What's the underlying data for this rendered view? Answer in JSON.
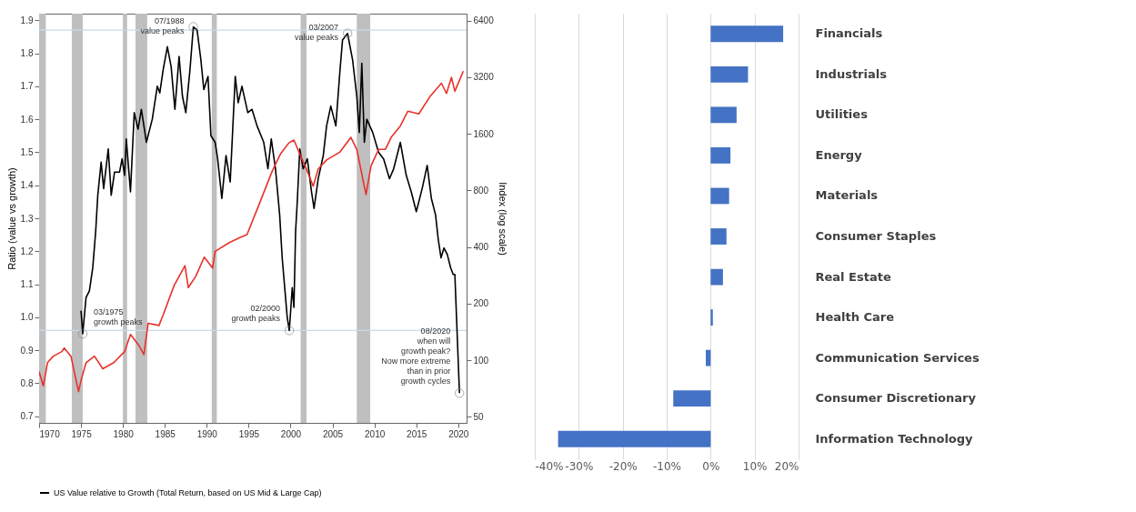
{
  "chart_data": [
    {
      "type": "line",
      "ylabel": "Ratio (value vs growth)",
      "y2label": "Index (log scale)",
      "legend": "bottom",
      "log": "y2",
      "xlim": [
        1970,
        2021
      ],
      "xticks": [
        1970,
        1975,
        1980,
        1985,
        1990,
        1995,
        2000,
        2005,
        2010,
        2015,
        2020
      ],
      "ylim": [
        0.68,
        1.92
      ],
      "yticks": [
        0.7,
        0.8,
        0.9,
        {
          "value": 1,
          "label": "1.0"
        },
        1.1,
        1.2,
        1.3,
        1.4,
        1.5,
        1.6,
        1.7,
        1.8,
        1.9
      ],
      "y2lim": [
        46.4,
        6960
      ],
      "y2ticks": [
        50,
        100,
        200,
        400,
        800,
        1600,
        3200,
        6400
      ],
      "series": [
        {
          "color": "#e8312a",
          "axis": "y2",
          "x": [
            1970,
            1970.5,
            1971,
            1971.7,
            1972.7,
            1973,
            1973.8,
            1974.7,
            1975,
            1975.6,
            1976.6,
            1977.6,
            1978.9,
            1980.2,
            1980.9,
            1981.9,
            1982.5,
            1983,
            1984.3,
            1984.8,
            1986.1,
            1987.4,
            1987.8,
            1988.7,
            1989.7,
            1990.7,
            1991,
            1992.7,
            1994,
            1994.8,
            1996.2,
            1997.8,
            1998.8,
            1999.8,
            2000.4,
            2001.1,
            2002,
            2002.7,
            2003.3,
            2004.3,
            2005.9,
            2007.2,
            2007.9,
            2009,
            2009.6,
            2010.5,
            2011.3,
            2012,
            2013.1,
            2014,
            2015.3,
            2016.6,
            2018,
            2018.6,
            2019.2,
            2019.6,
            2020.6
          ],
          "values": [
            87,
            73,
            97,
            105,
            111,
            116,
            105,
            68,
            78,
            97,
            105,
            90,
            97,
            111,
            137,
            120,
            107,
            157,
            153,
            174,
            249,
            318,
            243,
            280,
            353,
            309,
            379,
            422,
            450,
            465,
            665,
            1010,
            1250,
            1430,
            1480,
            1250,
            1010,
            842,
            1040,
            1160,
            1280,
            1530,
            1320,
            760,
            1080,
            1320,
            1320,
            1530,
            1760,
            2110,
            2040,
            2510,
            2970,
            2620,
            3190,
            2690,
            3440
          ]
        },
        {
          "name": "US Value relative to Growth (Total Return, based on US Mid & Large Cap)",
          "color": "#000000",
          "x": [
            1975,
            1975.2,
            1975.6,
            1976,
            1976.4,
            1976.75,
            1977,
            1977.4,
            1977.7,
            1978.25,
            1978.6,
            1979,
            1979.6,
            1979.9,
            1980.2,
            1980.4,
            1980.9,
            1981.35,
            1981.8,
            1982.2,
            1982.8,
            1983.5,
            1984.1,
            1984.4,
            1984.8,
            1985.3,
            1985.75,
            1986.2,
            1986.7,
            1987.1,
            1987.5,
            1988,
            1988.4,
            1988.85,
            1989.3,
            1989.65,
            1990.15,
            1990.5,
            1991,
            1991.3,
            1991.8,
            1992.3,
            1992.8,
            1993.4,
            1993.75,
            1994.2,
            1994.9,
            1995.4,
            1996,
            1996.8,
            1997.3,
            1997.7,
            1998.2,
            1998.7,
            1999,
            1999.6,
            1999.85,
            2000.2,
            2000.4,
            2000.6,
            2000.8,
            2001.1,
            2001.5,
            2002,
            2002.5,
            2002.8,
            2003.3,
            2003.9,
            2004.3,
            2004.8,
            2005.4,
            2005.9,
            2006.2,
            2006.8,
            2007.4,
            2007.9,
            2008.2,
            2008.5,
            2008.8,
            2009.1,
            2009.8,
            2010.5,
            2011.1,
            2011.8,
            2012.3,
            2013.1,
            2013.8,
            2014.4,
            2015,
            2015.7,
            2016.3,
            2016.8,
            2017.3,
            2017.6,
            2017.95,
            2018.3,
            2018.7,
            2019.1,
            2019.4,
            2019.6,
            2020.15
          ],
          "values": [
            1.02,
            0.95,
            1.06,
            1.08,
            1.15,
            1.26,
            1.37,
            1.47,
            1.39,
            1.51,
            1.37,
            1.44,
            1.44,
            1.48,
            1.43,
            1.54,
            1.38,
            1.62,
            1.57,
            1.63,
            1.53,
            1.6,
            1.7,
            1.68,
            1.75,
            1.82,
            1.76,
            1.63,
            1.79,
            1.67,
            1.62,
            1.75,
            1.88,
            1.87,
            1.78,
            1.69,
            1.73,
            1.55,
            1.53,
            1.48,
            1.36,
            1.49,
            1.41,
            1.73,
            1.65,
            1.7,
            1.62,
            1.63,
            1.58,
            1.53,
            1.45,
            1.54,
            1.45,
            1.31,
            1.18,
            1.0,
            0.96,
            1.09,
            1.03,
            1.26,
            1.35,
            1.51,
            1.45,
            1.48,
            1.38,
            1.33,
            1.42,
            1.49,
            1.58,
            1.64,
            1.58,
            1.75,
            1.84,
            1.86,
            1.78,
            1.67,
            1.56,
            1.77,
            1.53,
            1.6,
            1.56,
            1.5,
            1.48,
            1.42,
            1.45,
            1.53,
            1.43,
            1.38,
            1.32,
            1.39,
            1.46,
            1.36,
            1.31,
            1.24,
            1.18,
            1.21,
            1.19,
            1.15,
            1.13,
            1.13,
            0.77
          ]
        }
      ],
      "bands": [
        {
          "axis": "x",
          "from": 1969.9,
          "to": 1970.8,
          "color": "#bfbfbf"
        },
        {
          "axis": "x",
          "from": 1973.9,
          "to": 1975.2,
          "color": "#bfbfbf"
        },
        {
          "axis": "x",
          "from": 1980.0,
          "to": 1980.5,
          "color": "#bfbfbf"
        },
        {
          "axis": "x",
          "from": 1981.5,
          "to": 1982.9,
          "color": "#bfbfbf"
        },
        {
          "axis": "x",
          "from": 1990.6,
          "to": 1991.2,
          "color": "#bfbfbf"
        },
        {
          "axis": "x",
          "from": 2001.2,
          "to": 2001.9,
          "color": "#bfbfbf"
        },
        {
          "axis": "x",
          "from": 2007.9,
          "to": 2009.5,
          "color": "#bfbfbf"
        }
      ],
      "ref_lines": [
        {
          "axis": "y",
          "value": 1.87,
          "color": "#c9dbe8"
        },
        {
          "axis": "y",
          "value": 0.96,
          "color": "#c9dbe8"
        }
      ],
      "annotations": [
        {
          "text": "07/1988\nvalue peaks",
          "x": 1988.4,
          "y": 1.88
        },
        {
          "text": "03/2007\nvalue peaks",
          "x": 2006.8,
          "y": 1.86
        },
        {
          "text": "03/1975\ngrowth peaks",
          "x": 1975.2,
          "y": 0.95
        },
        {
          "text": "02/2000\ngrowth peaks",
          "x": 1999.85,
          "y": 0.96
        },
        {
          "text": "08/2020\nwhen will\ngrowth peak?\nNow more extreme\nthan in prior\ngrowth cycles",
          "x": 2020.15,
          "y": 0.77
        }
      ]
    },
    {
      "type": "bar",
      "orientation": "horizontal",
      "grid": "x",
      "color": "#4472c4",
      "categories": [
        "Financials",
        "Industrials",
        "Utilities",
        "Energy",
        "Materials",
        "Consumer Staples",
        "Real Estate",
        "Health Care",
        "Communication Services",
        "Consumer Discretionary",
        "Information Technology"
      ],
      "values": [
        16.5,
        8.5,
        5.9,
        4.5,
        4.2,
        3.6,
        2.8,
        0.5,
        -1.1,
        -8.5,
        -34.7
      ],
      "xlim": [
        -40,
        20
      ],
      "xticks": [
        {
          "value": -40,
          "label": "-40%"
        },
        {
          "value": -30,
          "label": "-30%"
        },
        {
          "value": -20,
          "label": "-20%"
        },
        {
          "value": -10,
          "label": "-10%"
        },
        {
          "value": 0,
          "label": "0%"
        },
        {
          "value": 10,
          "label": "10%"
        },
        {
          "value": 20,
          "label": "20%"
        }
      ]
    }
  ]
}
